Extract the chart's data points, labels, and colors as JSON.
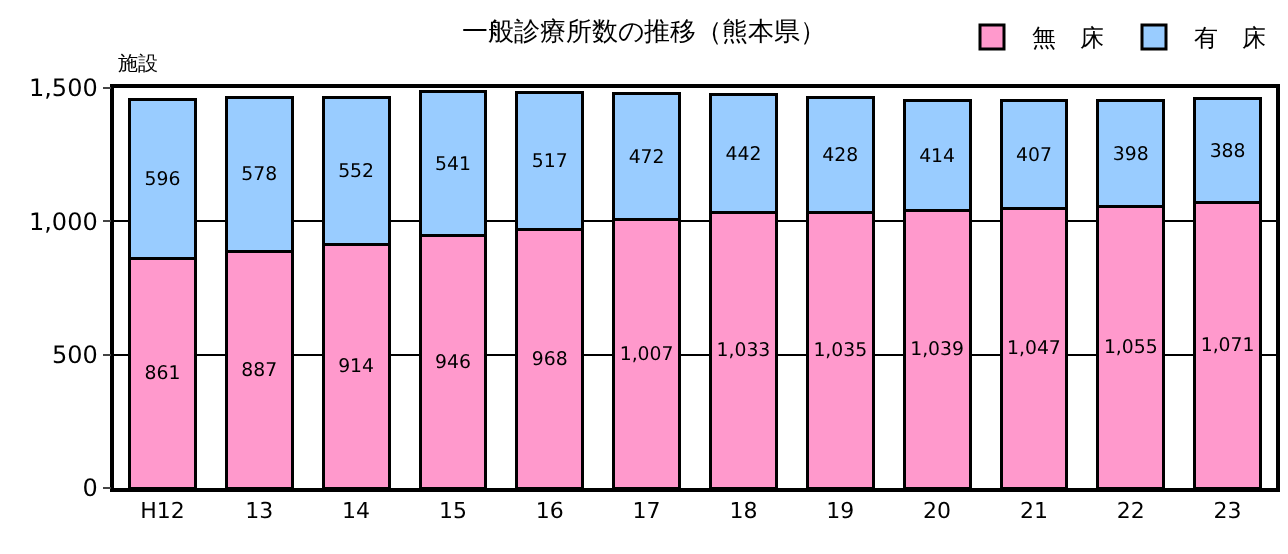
{
  "chart_data": {
    "type": "bar",
    "stacked": true,
    "title": "一般診療所数の推移（熊本県）",
    "ylabel": "施設",
    "categories": [
      "H12",
      "13",
      "14",
      "15",
      "16",
      "17",
      "18",
      "19",
      "20",
      "21",
      "22",
      "23"
    ],
    "series": [
      {
        "name": "無　床",
        "color": "#ff99cc",
        "values": [
          861,
          887,
          914,
          946,
          968,
          1007,
          1033,
          1035,
          1039,
          1047,
          1055,
          1071
        ],
        "value_labels": [
          "861",
          "887",
          "914",
          "946",
          "968",
          "1,007",
          "1,033",
          "1,035",
          "1,039",
          "1,047",
          "1,055",
          "1,071"
        ]
      },
      {
        "name": "有　床",
        "color": "#99ccff",
        "values": [
          596,
          578,
          552,
          541,
          517,
          472,
          442,
          428,
          414,
          407,
          398,
          388
        ],
        "value_labels": [
          "596",
          "578",
          "552",
          "541",
          "517",
          "472",
          "442",
          "428",
          "414",
          "407",
          "398",
          "388"
        ]
      }
    ],
    "ylim": [
      0,
      1500
    ],
    "yticks": [
      {
        "value": 0,
        "label": "0"
      },
      {
        "value": 500,
        "label": "500"
      },
      {
        "value": 1000,
        "label": "1,000"
      },
      {
        "value": 1500,
        "label": "1,500"
      }
    ],
    "grid": "y",
    "legend": "top right"
  }
}
